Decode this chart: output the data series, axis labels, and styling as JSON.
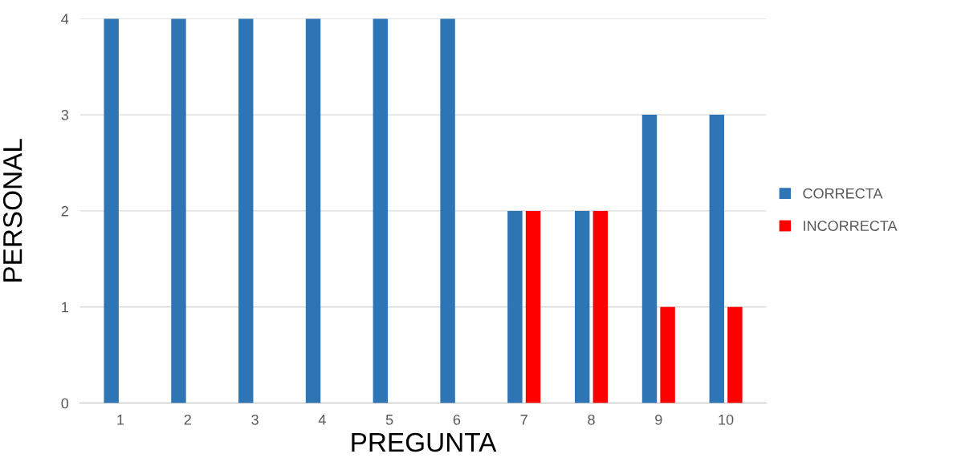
{
  "chart_data": {
    "type": "bar",
    "xlabel": "PREGUNTA",
    "ylabel": "PERSONAL",
    "categories": [
      "1",
      "2",
      "3",
      "4",
      "5",
      "6",
      "7",
      "8",
      "9",
      "10"
    ],
    "series": [
      {
        "name": "CORRECTA",
        "color": "#2e75b6",
        "values": [
          4,
          4,
          4,
          4,
          4,
          4,
          2,
          2,
          3,
          3
        ]
      },
      {
        "name": "INCORRECTA",
        "color": "#ff0000",
        "values": [
          0,
          0,
          0,
          0,
          0,
          0,
          2,
          2,
          1,
          1
        ]
      }
    ],
    "ylim": [
      0,
      4
    ],
    "yticks": [
      0,
      1,
      2,
      3,
      4
    ],
    "grid": "y",
    "legend": "right"
  }
}
